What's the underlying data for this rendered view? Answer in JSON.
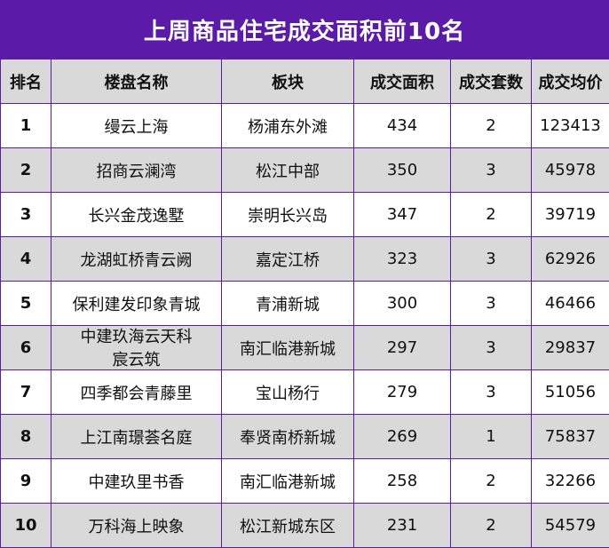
{
  "title": "上周商品住宅成交面积前10名",
  "headers": [
    "排名",
    "楼盘名称",
    "板块",
    "成交面积",
    "成交套数",
    "成交均价"
  ],
  "rows": [
    [
      "1",
      "缦云上海",
      "杨浦东外滩",
      "434",
      "2",
      "123413"
    ],
    [
      "2",
      "招商云澜湾",
      "松江中部",
      "350",
      "3",
      "45978"
    ],
    [
      "3",
      "长兴金茂逸墅",
      "崇明长兴岛",
      "347",
      "2",
      "39719"
    ],
    [
      "4",
      "龙湖虹桥青云阙",
      "嘉定江桥",
      "323",
      "3",
      "62926"
    ],
    [
      "5",
      "保利建发印象青城",
      "青浦新城",
      "300",
      "3",
      "46466"
    ],
    [
      "6",
      "中建玖海云天科宸云筑",
      "南汇临港新城",
      "297",
      "3",
      "29837"
    ],
    [
      "7",
      "四季都会青藤里",
      "宝山杨行",
      "279",
      "3",
      "51056"
    ],
    [
      "8",
      "上江南璟荟名庭",
      "奉贤南桥新城",
      "269",
      "1",
      "75837"
    ],
    [
      "9",
      "中建玖里书香",
      "南汇临港新城",
      "258",
      "2",
      "32266"
    ],
    [
      "10",
      "万科海上映象",
      "松江新城东区",
      "231",
      "2",
      "54579"
    ]
  ],
  "colors": {
    "header_bar": "#5b1aa7",
    "border": "#5b1aa7",
    "stripe": "#d9d9d9"
  }
}
